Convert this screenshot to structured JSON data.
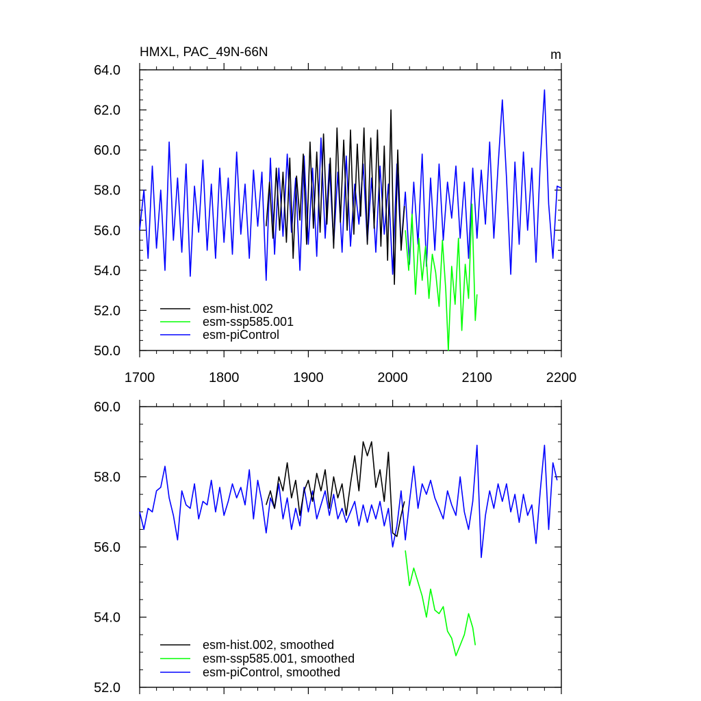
{
  "chart_data": [
    {
      "type": "line",
      "title": "HMXL, PAC_49N-66N",
      "units": "m",
      "xlim": [
        1700,
        2200
      ],
      "ylim": [
        50,
        64
      ],
      "xticks": [
        1700,
        1800,
        1900,
        2000,
        2100,
        2200
      ],
      "xtick_labels": [
        "1700",
        "1800",
        "1900",
        "2000",
        "2100",
        "2200"
      ],
      "yticks": [
        50,
        52,
        54,
        56,
        58,
        60,
        62,
        64
      ],
      "ytick_labels": [
        "50.0",
        "52.0",
        "54.0",
        "56.0",
        "58.0",
        "60.0",
        "62.0",
        "64.0"
      ],
      "grid": false,
      "legend": "bottom-left",
      "series": [
        {
          "name": "esm-hist.002",
          "color": "#000000",
          "x": [
            1850,
            1854,
            1858,
            1862,
            1866,
            1870,
            1874,
            1878,
            1882,
            1886,
            1890,
            1894,
            1898,
            1902,
            1906,
            1910,
            1914,
            1918,
            1922,
            1926,
            1930,
            1934,
            1938,
            1942,
            1946,
            1950,
            1954,
            1958,
            1962,
            1966,
            1970,
            1974,
            1978,
            1982,
            1986,
            1990,
            1994,
            1998,
            2002,
            2006,
            2010,
            2014
          ],
          "y": [
            56.2,
            58.4,
            55.6,
            59.1,
            56.0,
            58.9,
            55.4,
            59.6,
            54.6,
            58.7,
            56.5,
            59.8,
            55.3,
            60.4,
            56.1,
            59.9,
            55.9,
            60.8,
            56.3,
            59.6,
            55.1,
            61.1,
            56.4,
            60.5,
            56.0,
            61.0,
            55.8,
            60.3,
            56.7,
            61.1,
            55.3,
            60.6,
            56.1,
            61.0,
            55.2,
            60.2,
            54.5,
            62.0,
            53.3,
            60.0,
            55.0,
            57.2
          ]
        },
        {
          "name": "esm-ssp585.001",
          "color": "#00ff00",
          "x": [
            2015,
            2019,
            2023,
            2027,
            2031,
            2035,
            2039,
            2043,
            2047,
            2051,
            2055,
            2059,
            2063,
            2066,
            2070,
            2074,
            2078,
            2082,
            2086,
            2090,
            2094,
            2098,
            2100
          ],
          "y": [
            56.0,
            54.0,
            56.8,
            52.8,
            55.6,
            53.5,
            55.2,
            52.6,
            54.8,
            53.9,
            52.2,
            55.5,
            53.0,
            50.0,
            54.2,
            52.3,
            55.6,
            51.0,
            54.3,
            52.6,
            57.3,
            51.5,
            52.8
          ]
        },
        {
          "name": "esm-piControl",
          "color": "#0000ff",
          "x": [
            1700,
            1705,
            1710,
            1715,
            1720,
            1725,
            1730,
            1735,
            1740,
            1745,
            1750,
            1755,
            1760,
            1765,
            1770,
            1775,
            1780,
            1785,
            1790,
            1795,
            1800,
            1805,
            1810,
            1815,
            1820,
            1825,
            1830,
            1835,
            1840,
            1845,
            1850,
            1855,
            1860,
            1865,
            1870,
            1875,
            1880,
            1885,
            1890,
            1895,
            1900,
            1905,
            1910,
            1915,
            1920,
            1925,
            1930,
            1935,
            1940,
            1945,
            1950,
            1955,
            1960,
            1965,
            1970,
            1975,
            1980,
            1985,
            1990,
            1995,
            2000,
            2005,
            2010,
            2015,
            2020,
            2025,
            2030,
            2035,
            2040,
            2045,
            2050,
            2055,
            2060,
            2065,
            2070,
            2075,
            2080,
            2085,
            2090,
            2095,
            2100,
            2105,
            2110,
            2115,
            2120,
            2125,
            2130,
            2135,
            2140,
            2145,
            2150,
            2155,
            2160,
            2165,
            2170,
            2175,
            2180,
            2185,
            2190,
            2195,
            2200
          ],
          "y": [
            56.0,
            58.0,
            54.6,
            59.2,
            55.1,
            58.0,
            54.0,
            60.4,
            55.5,
            58.6,
            54.9,
            59.3,
            53.7,
            58.2,
            55.9,
            59.5,
            55.0,
            58.3,
            54.6,
            59.1,
            55.4,
            58.6,
            54.8,
            59.9,
            55.8,
            58.3,
            54.6,
            59.0,
            56.2,
            58.9,
            53.5,
            59.6,
            54.8,
            59.1,
            55.7,
            59.8,
            55.9,
            58.6,
            54.0,
            59.7,
            55.3,
            59.1,
            54.7,
            60.6,
            55.6,
            59.3,
            55.3,
            58.9,
            54.9,
            59.7,
            55.2,
            58.3,
            56.3,
            59.3,
            55.4,
            58.6,
            54.9,
            59.2,
            55.8,
            58.3,
            53.8,
            59.3,
            55.2,
            57.9,
            54.3,
            58.4,
            55.3,
            59.8,
            54.2,
            58.6,
            55.0,
            59.3,
            55.5,
            58.4,
            56.6,
            59.2,
            55.6,
            58.4,
            54.6,
            59.1,
            55.6,
            59.0,
            56.3,
            60.4,
            55.6,
            59.2,
            62.5,
            58.6,
            53.8,
            59.4,
            55.3,
            59.9,
            56.0,
            59.1,
            54.4,
            59.4,
            63.0,
            57.3,
            54.6,
            58.2,
            58.1
          ]
        }
      ]
    },
    {
      "type": "line",
      "xlim": [
        1700,
        2200
      ],
      "ylim": [
        52,
        60
      ],
      "xticks": [
        1700,
        1800,
        1900,
        2000,
        2100,
        2200
      ],
      "yticks": [
        52,
        54,
        56,
        58,
        60
      ],
      "ytick_labels": [
        "52.0",
        "54.0",
        "56.0",
        "58.0",
        "60.0"
      ],
      "grid": false,
      "legend": "bottom-left",
      "series": [
        {
          "name": "esm-hist.002, smoothed",
          "color": "#000000",
          "x": [
            1850,
            1855,
            1860,
            1865,
            1870,
            1875,
            1880,
            1885,
            1890,
            1895,
            1900,
            1905,
            1910,
            1915,
            1920,
            1925,
            1930,
            1935,
            1940,
            1945,
            1950,
            1955,
            1960,
            1965,
            1970,
            1975,
            1980,
            1985,
            1990,
            1995,
            2000,
            2005,
            2010,
            2014
          ],
          "y": [
            57.2,
            57.6,
            57.1,
            58.0,
            57.6,
            58.4,
            57.4,
            57.9,
            56.9,
            57.6,
            57.9,
            57.3,
            58.1,
            57.6,
            58.2,
            57.1,
            58.0,
            57.4,
            57.8,
            56.9,
            57.8,
            58.6,
            57.6,
            59.0,
            58.6,
            59.0,
            57.7,
            58.2,
            57.3,
            58.7,
            56.4,
            56.3,
            56.9,
            57.3
          ]
        },
        {
          "name": "esm-ssp585.001, smoothed",
          "color": "#00ff00",
          "x": [
            2015,
            2020,
            2025,
            2030,
            2035,
            2040,
            2045,
            2050,
            2055,
            2060,
            2065,
            2070,
            2075,
            2080,
            2085,
            2090,
            2095,
            2098
          ],
          "y": [
            55.9,
            54.9,
            55.4,
            55.0,
            54.6,
            54.0,
            54.8,
            54.2,
            54.1,
            54.3,
            53.6,
            53.4,
            52.9,
            53.2,
            53.5,
            54.1,
            53.7,
            53.2
          ]
        },
        {
          "name": "esm-piControl, smoothed",
          "color": "#0000ff",
          "x": [
            1700,
            1705,
            1710,
            1715,
            1720,
            1725,
            1730,
            1735,
            1740,
            1745,
            1750,
            1755,
            1760,
            1765,
            1770,
            1775,
            1780,
            1785,
            1790,
            1795,
            1800,
            1805,
            1810,
            1815,
            1820,
            1825,
            1830,
            1835,
            1840,
            1845,
            1850,
            1855,
            1860,
            1865,
            1870,
            1875,
            1880,
            1885,
            1890,
            1895,
            1900,
            1905,
            1910,
            1915,
            1920,
            1925,
            1930,
            1935,
            1940,
            1945,
            1950,
            1955,
            1960,
            1965,
            1970,
            1975,
            1980,
            1985,
            1990,
            1995,
            2000,
            2005,
            2010,
            2015,
            2020,
            2025,
            2030,
            2035,
            2040,
            2045,
            2050,
            2055,
            2060,
            2065,
            2070,
            2075,
            2080,
            2085,
            2090,
            2095,
            2100,
            2105,
            2110,
            2115,
            2120,
            2125,
            2130,
            2135,
            2140,
            2145,
            2150,
            2155,
            2160,
            2165,
            2170,
            2175,
            2180,
            2185,
            2190,
            2195
          ],
          "y": [
            57.0,
            56.5,
            57.1,
            57.0,
            57.6,
            57.7,
            58.3,
            57.4,
            56.9,
            56.2,
            57.6,
            57.2,
            57.1,
            57.8,
            56.8,
            57.3,
            57.2,
            57.9,
            57.0,
            57.7,
            56.9,
            57.3,
            57.8,
            57.4,
            57.7,
            57.2,
            58.2,
            56.8,
            57.9,
            57.3,
            56.4,
            57.4,
            57.1,
            57.8,
            56.8,
            57.4,
            56.5,
            57.1,
            56.6,
            57.7,
            57.0,
            57.6,
            56.8,
            57.2,
            57.6,
            56.9,
            57.5,
            56.8,
            57.1,
            56.7,
            57.0,
            57.3,
            56.6,
            57.2,
            56.7,
            57.2,
            56.8,
            57.3,
            56.6,
            57.1,
            56.0,
            56.6,
            57.6,
            56.2,
            57.3,
            58.3,
            57.1,
            57.8,
            57.5,
            57.9,
            57.4,
            57.1,
            56.8,
            57.6,
            57.2,
            56.9,
            58.0,
            57.0,
            56.5,
            57.3,
            58.9,
            55.7,
            56.9,
            57.6,
            57.1,
            57.8,
            57.3,
            57.8,
            57.0,
            57.5,
            56.7,
            57.5,
            56.9,
            57.2,
            56.1,
            57.6,
            58.9,
            56.5,
            58.4,
            57.9
          ]
        }
      ]
    }
  ]
}
